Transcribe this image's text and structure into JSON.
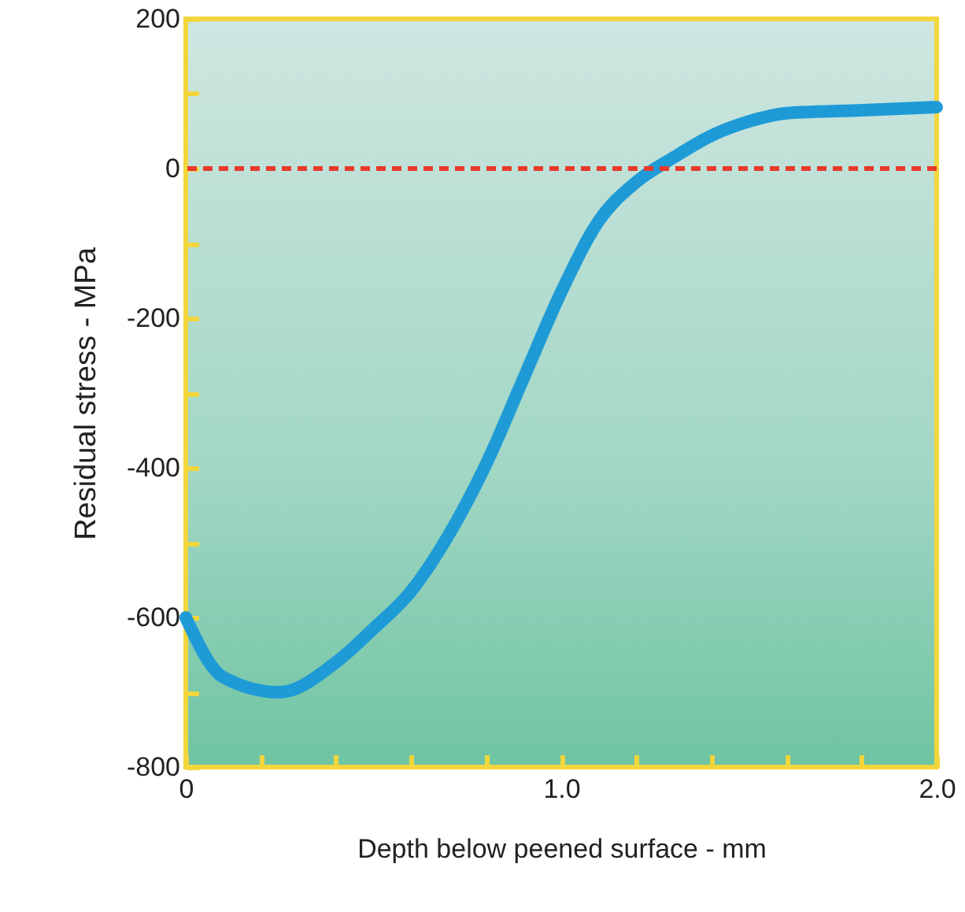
{
  "chart_data": {
    "type": "line",
    "xlabel": "Depth below peened surface - mm",
    "ylabel": "Residual stress - MPa",
    "x": [
      0,
      0.1,
      0.25,
      0.4,
      0.5,
      0.6,
      0.7,
      0.8,
      0.9,
      1.0,
      1.1,
      1.2,
      1.3,
      1.4,
      1.5,
      1.6,
      1.8,
      2.0
    ],
    "series": [
      {
        "color": "#1e9bd7",
        "values": [
          -600,
          -680,
          -700,
          -660,
          -615,
          -565,
          -490,
          -395,
          -280,
          -165,
          -70,
          -18,
          15,
          44,
          63,
          74,
          78,
          82
        ]
      }
    ],
    "xlim": [
      0,
      2.0
    ],
    "ylim": [
      -800,
      200
    ],
    "xticks": [
      0,
      {
        "value": 0.2,
        "label": null
      },
      {
        "value": 0.4,
        "label": null
      },
      {
        "value": 0.6,
        "label": null
      },
      {
        "value": 0.8,
        "label": null
      },
      {
        "value": 1.0,
        "label": "1.0"
      },
      {
        "value": 1.2,
        "label": null
      },
      {
        "value": 1.4,
        "label": null
      },
      {
        "value": 1.6,
        "label": null
      },
      {
        "value": 1.8,
        "label": null
      },
      {
        "value": 2.0,
        "label": "2.0"
      }
    ],
    "yticks": [
      {
        "value": -800,
        "label": "-800"
      },
      {
        "value": -700,
        "label": null
      },
      -600,
      {
        "value": -500,
        "label": null
      },
      -400,
      {
        "value": -300,
        "label": null
      },
      -200,
      {
        "value": -100,
        "label": null
      },
      0,
      {
        "value": 100,
        "label": null
      },
      200
    ],
    "ref_lines": [
      {
        "axis": "y",
        "value": 0,
        "color": "#e8392a",
        "line_style": "dashed"
      }
    ],
    "grid": false,
    "marker": "none",
    "line_style": "solid"
  }
}
